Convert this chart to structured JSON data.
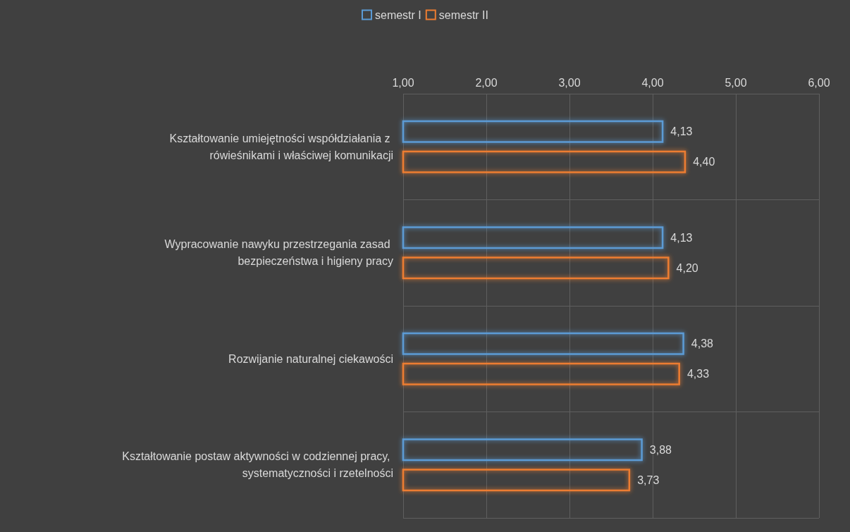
{
  "chart_data": {
    "type": "bar",
    "orientation": "horizontal",
    "categories": [
      "Kształtowanie umiejętności współdziałania z rówieśnikami i właściwej komunikacji",
      "Wypracowanie nawyku przestrzegania zasad bezpieczeństwa i higieny pracy",
      "Rozwijanie naturalnej ciekawości",
      "Kształtowanie postaw aktywności w codziennej pracy, systematyczności i rzetelności"
    ],
    "series": [
      {
        "name": "semestr I",
        "color": "#5b9bd5",
        "values": [
          4.13,
          4.13,
          4.38,
          3.88
        ],
        "value_labels": [
          "4,13",
          "4,13",
          "4,38",
          "3,88"
        ]
      },
      {
        "name": "semestr II",
        "color": "#ed7d31",
        "values": [
          4.4,
          4.2,
          4.33,
          3.73
        ],
        "value_labels": [
          "4,40",
          "4,20",
          "4,33",
          "3,73"
        ]
      }
    ],
    "xlim": [
      1,
      6
    ],
    "xticks": [
      {
        "value": 1,
        "label": "1,00"
      },
      {
        "value": 2,
        "label": "2,00"
      },
      {
        "value": 3,
        "label": "3,00"
      },
      {
        "value": 4,
        "label": "4,00"
      },
      {
        "value": 5,
        "label": "5,00"
      },
      {
        "value": 6,
        "label": "6,00"
      }
    ],
    "grid": true,
    "legend": "top"
  }
}
